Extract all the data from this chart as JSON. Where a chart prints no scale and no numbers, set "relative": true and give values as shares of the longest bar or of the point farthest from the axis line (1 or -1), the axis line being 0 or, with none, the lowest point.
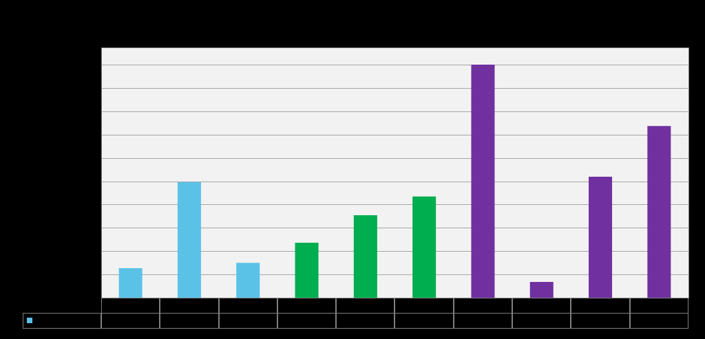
{
  "chart_data": {
    "type": "bar",
    "relative": true,
    "grid": "y",
    "categories": [
      null,
      null,
      null,
      null,
      null,
      null,
      null,
      null,
      null,
      null
    ],
    "values": [
      0.127,
      0.496,
      0.15,
      0.236,
      0.354,
      0.434,
      1,
      0.068,
      0.519,
      0.737
    ],
    "colors": [
      "#5bc2e7",
      "#5bc2e7",
      "#5bc2e7",
      "#00ad4f",
      "#00ad4f",
      "#00ad4f",
      "#7030a0",
      "#7030a0",
      "#7030a0",
      "#7030a0"
    ]
  }
}
